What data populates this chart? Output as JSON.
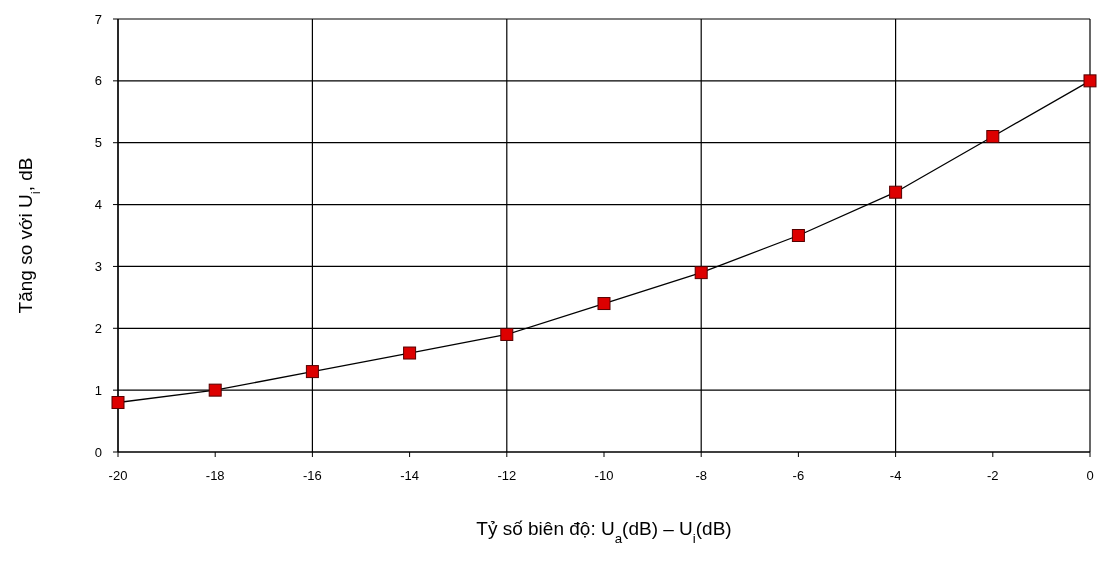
{
  "chart_data": {
    "type": "line",
    "xlabel": "Tỷ số biên độ: U$_{a}$(dB) – U$_{i}$(dB)",
    "ylabel": "Tăng so với U$_{i}$, dB",
    "x": [
      -20,
      -18,
      -16,
      -14,
      -12,
      -10,
      -8,
      -6,
      -4,
      -2,
      0
    ],
    "series": [
      {
        "color": "#dd0000",
        "values": [
          0.8,
          1.0,
          1.3,
          1.6,
          1.9,
          2.4,
          2.9,
          3.5,
          4.2,
          5.1,
          6.0
        ]
      }
    ],
    "marker": "square",
    "line_style": "solid",
    "grid": true,
    "xlim": [
      -20,
      0
    ],
    "xticks": [
      -20,
      -18,
      -16,
      -14,
      -12,
      -10,
      -8,
      -6,
      -4,
      -2,
      0
    ],
    "ylim": [
      0,
      7
    ],
    "yticks": [
      0,
      1,
      2,
      3,
      4,
      5,
      6,
      7
    ]
  }
}
